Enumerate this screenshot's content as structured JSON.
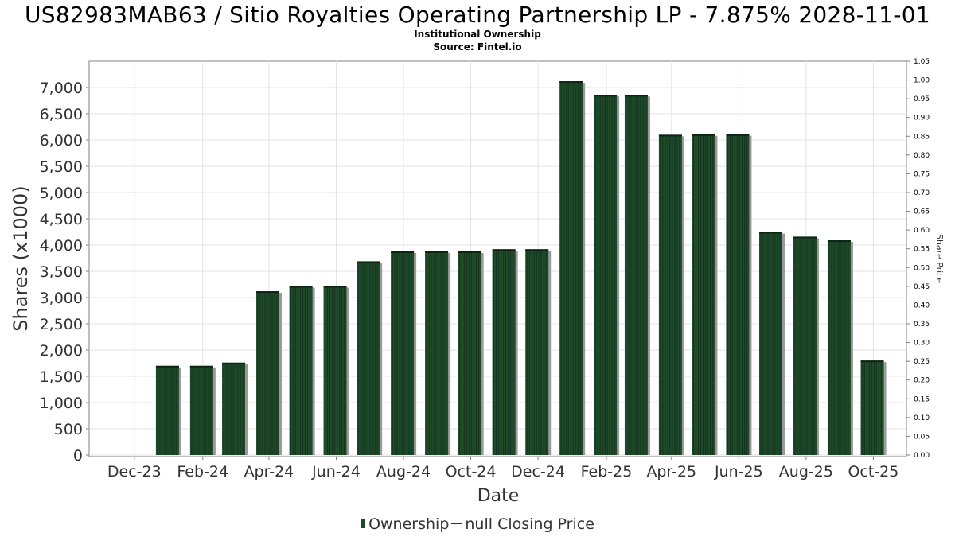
{
  "chart_data": {
    "type": "bar",
    "title": "US82983MAB63 / Sitio Royalties Operating Partnership LP - 7.875% 2028-11-01",
    "subtitle": [
      "Institutional Ownership",
      "Source: Fintel.io"
    ],
    "xlabel": "Date",
    "ylabel": "Shares (x1000)",
    "y2label": "Share Price",
    "x_ticks": [
      "Dec-23",
      "Feb-24",
      "Apr-24",
      "Jun-24",
      "Aug-24",
      "Oct-24",
      "Dec-24",
      "Feb-25",
      "Apr-25",
      "Jun-25",
      "Aug-25",
      "Oct-25"
    ],
    "y_ticks": [
      "0",
      "500",
      "1,000",
      "1,500",
      "2,000",
      "2,500",
      "3,000",
      "3,500",
      "4,000",
      "4,500",
      "5,000",
      "5,500",
      "6,000",
      "6,500",
      "7,000"
    ],
    "y2_ticks": [
      "0.00",
      "0.05",
      "0.10",
      "0.15",
      "0.20",
      "0.25",
      "0.30",
      "0.35",
      "0.40",
      "0.45",
      "0.50",
      "0.55",
      "0.60",
      "0.65",
      "0.70",
      "0.75",
      "0.80",
      "0.85",
      "0.90",
      "0.95",
      "1.00",
      "1.05"
    ],
    "ylim": [
      0,
      7450
    ],
    "y2lim": [
      0,
      1.05
    ],
    "x_range": [
      "2023-10-21",
      "2025-10-31"
    ],
    "grid": true,
    "legend_position": "bottom",
    "series": [
      {
        "name": "Ownership",
        "color": "#1e4a2a",
        "points": [
          {
            "date": "2023-12-31",
            "value": 1700
          },
          {
            "date": "2024-01-31",
            "value": 1700
          },
          {
            "date": "2024-02-29",
            "value": 1760
          },
          {
            "date": "2024-03-31",
            "value": 3120
          },
          {
            "date": "2024-04-30",
            "value": 3220
          },
          {
            "date": "2024-05-31",
            "value": 3220
          },
          {
            "date": "2024-06-30",
            "value": 3690
          },
          {
            "date": "2024-07-31",
            "value": 3880
          },
          {
            "date": "2024-08-31",
            "value": 3880
          },
          {
            "date": "2024-09-30",
            "value": 3880
          },
          {
            "date": "2024-10-31",
            "value": 3920
          },
          {
            "date": "2024-11-30",
            "value": 3920
          },
          {
            "date": "2024-12-31",
            "value": 7120
          },
          {
            "date": "2025-01-31",
            "value": 6860
          },
          {
            "date": "2025-02-28",
            "value": 6860
          },
          {
            "date": "2025-03-31",
            "value": 6100
          },
          {
            "date": "2025-04-30",
            "value": 6110
          },
          {
            "date": "2025-05-31",
            "value": 6110
          },
          {
            "date": "2025-06-30",
            "value": 4250
          },
          {
            "date": "2025-07-31",
            "value": 4160
          },
          {
            "date": "2025-08-31",
            "value": 4090
          },
          {
            "date": "2025-09-30",
            "value": 1800
          }
        ]
      }
    ],
    "legend": {
      "ownership_label": "Ownership",
      "price_label": "null Closing Price"
    }
  }
}
